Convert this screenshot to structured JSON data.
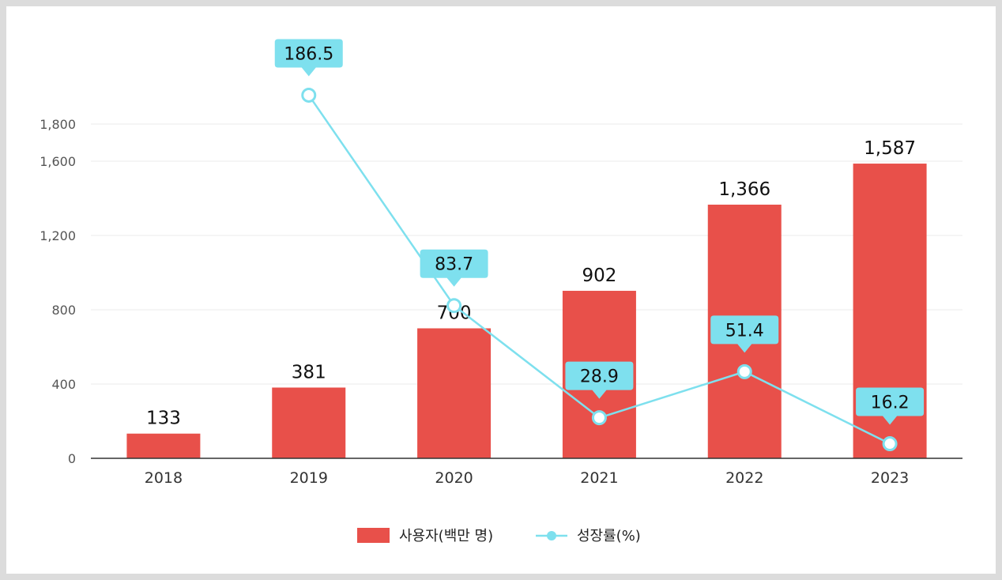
{
  "chart_data": {
    "type": "bar",
    "categories": [
      "2018",
      "2019",
      "2020",
      "2021",
      "2022",
      "2023"
    ],
    "y_axis": {
      "ticks": [
        0,
        400,
        800,
        1200,
        1600,
        1800
      ],
      "tick_labels": [
        "0",
        "400",
        "800",
        "1,200",
        "1,600",
        "1,800"
      ],
      "grid": true
    },
    "series": [
      {
        "name": "사용자(백만 명)",
        "type": "bar",
        "color": "#e8504a",
        "values": [
          133,
          381,
          700,
          902,
          1366,
          1587
        ],
        "labels": [
          "133",
          "381",
          "700",
          "902",
          "1,366",
          "1,587"
        ]
      },
      {
        "name": "성장률(%)",
        "type": "line",
        "color": "#7ee0ee",
        "values": [
          null,
          186.5,
          83.7,
          28.9,
          51.4,
          16.2
        ],
        "labels": [
          "",
          "186.5",
          "83.7",
          "28.9",
          "51.4",
          "16.2"
        ]
      }
    ],
    "legend": "bottom-center"
  }
}
